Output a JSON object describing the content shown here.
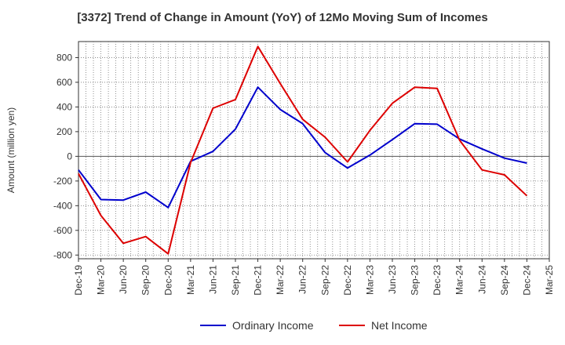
{
  "chart_data": {
    "type": "line",
    "title": "[3372]  Trend of Change in Amount (YoY) of 12Mo Moving Sum of Incomes",
    "ylabel": "Amount (million yen)",
    "xlabel": "",
    "ylim": [
      -830,
      930
    ],
    "yticks": [
      -800,
      -600,
      -400,
      -200,
      0,
      200,
      400,
      600,
      800
    ],
    "x": [
      "Dec-19",
      "Mar-20",
      "Jun-20",
      "Sep-20",
      "Dec-20",
      "Mar-21",
      "Jun-21",
      "Sep-21",
      "Dec-21",
      "Mar-22",
      "Jun-22",
      "Sep-22",
      "Dec-22",
      "Mar-23",
      "Jun-23",
      "Sep-23",
      "Dec-23",
      "Mar-24",
      "Jun-24",
      "Sep-24",
      "Dec-24",
      "Mar-25"
    ],
    "grid": true,
    "legend": "bottom",
    "series": [
      {
        "name": "Ordinary Income",
        "color": "#0000cc",
        "values": [
          -110,
          -350,
          -355,
          -290,
          -415,
          -40,
          40,
          220,
          560,
          380,
          265,
          30,
          -95,
          10,
          135,
          265,
          260,
          140,
          60,
          -15,
          -55,
          null
        ]
      },
      {
        "name": "Net Income",
        "color": "#dd0000",
        "values": [
          -140,
          -480,
          -705,
          -650,
          -790,
          -50,
          390,
          460,
          890,
          590,
          300,
          155,
          -45,
          210,
          430,
          560,
          550,
          130,
          -110,
          -150,
          -320,
          null
        ]
      }
    ]
  }
}
